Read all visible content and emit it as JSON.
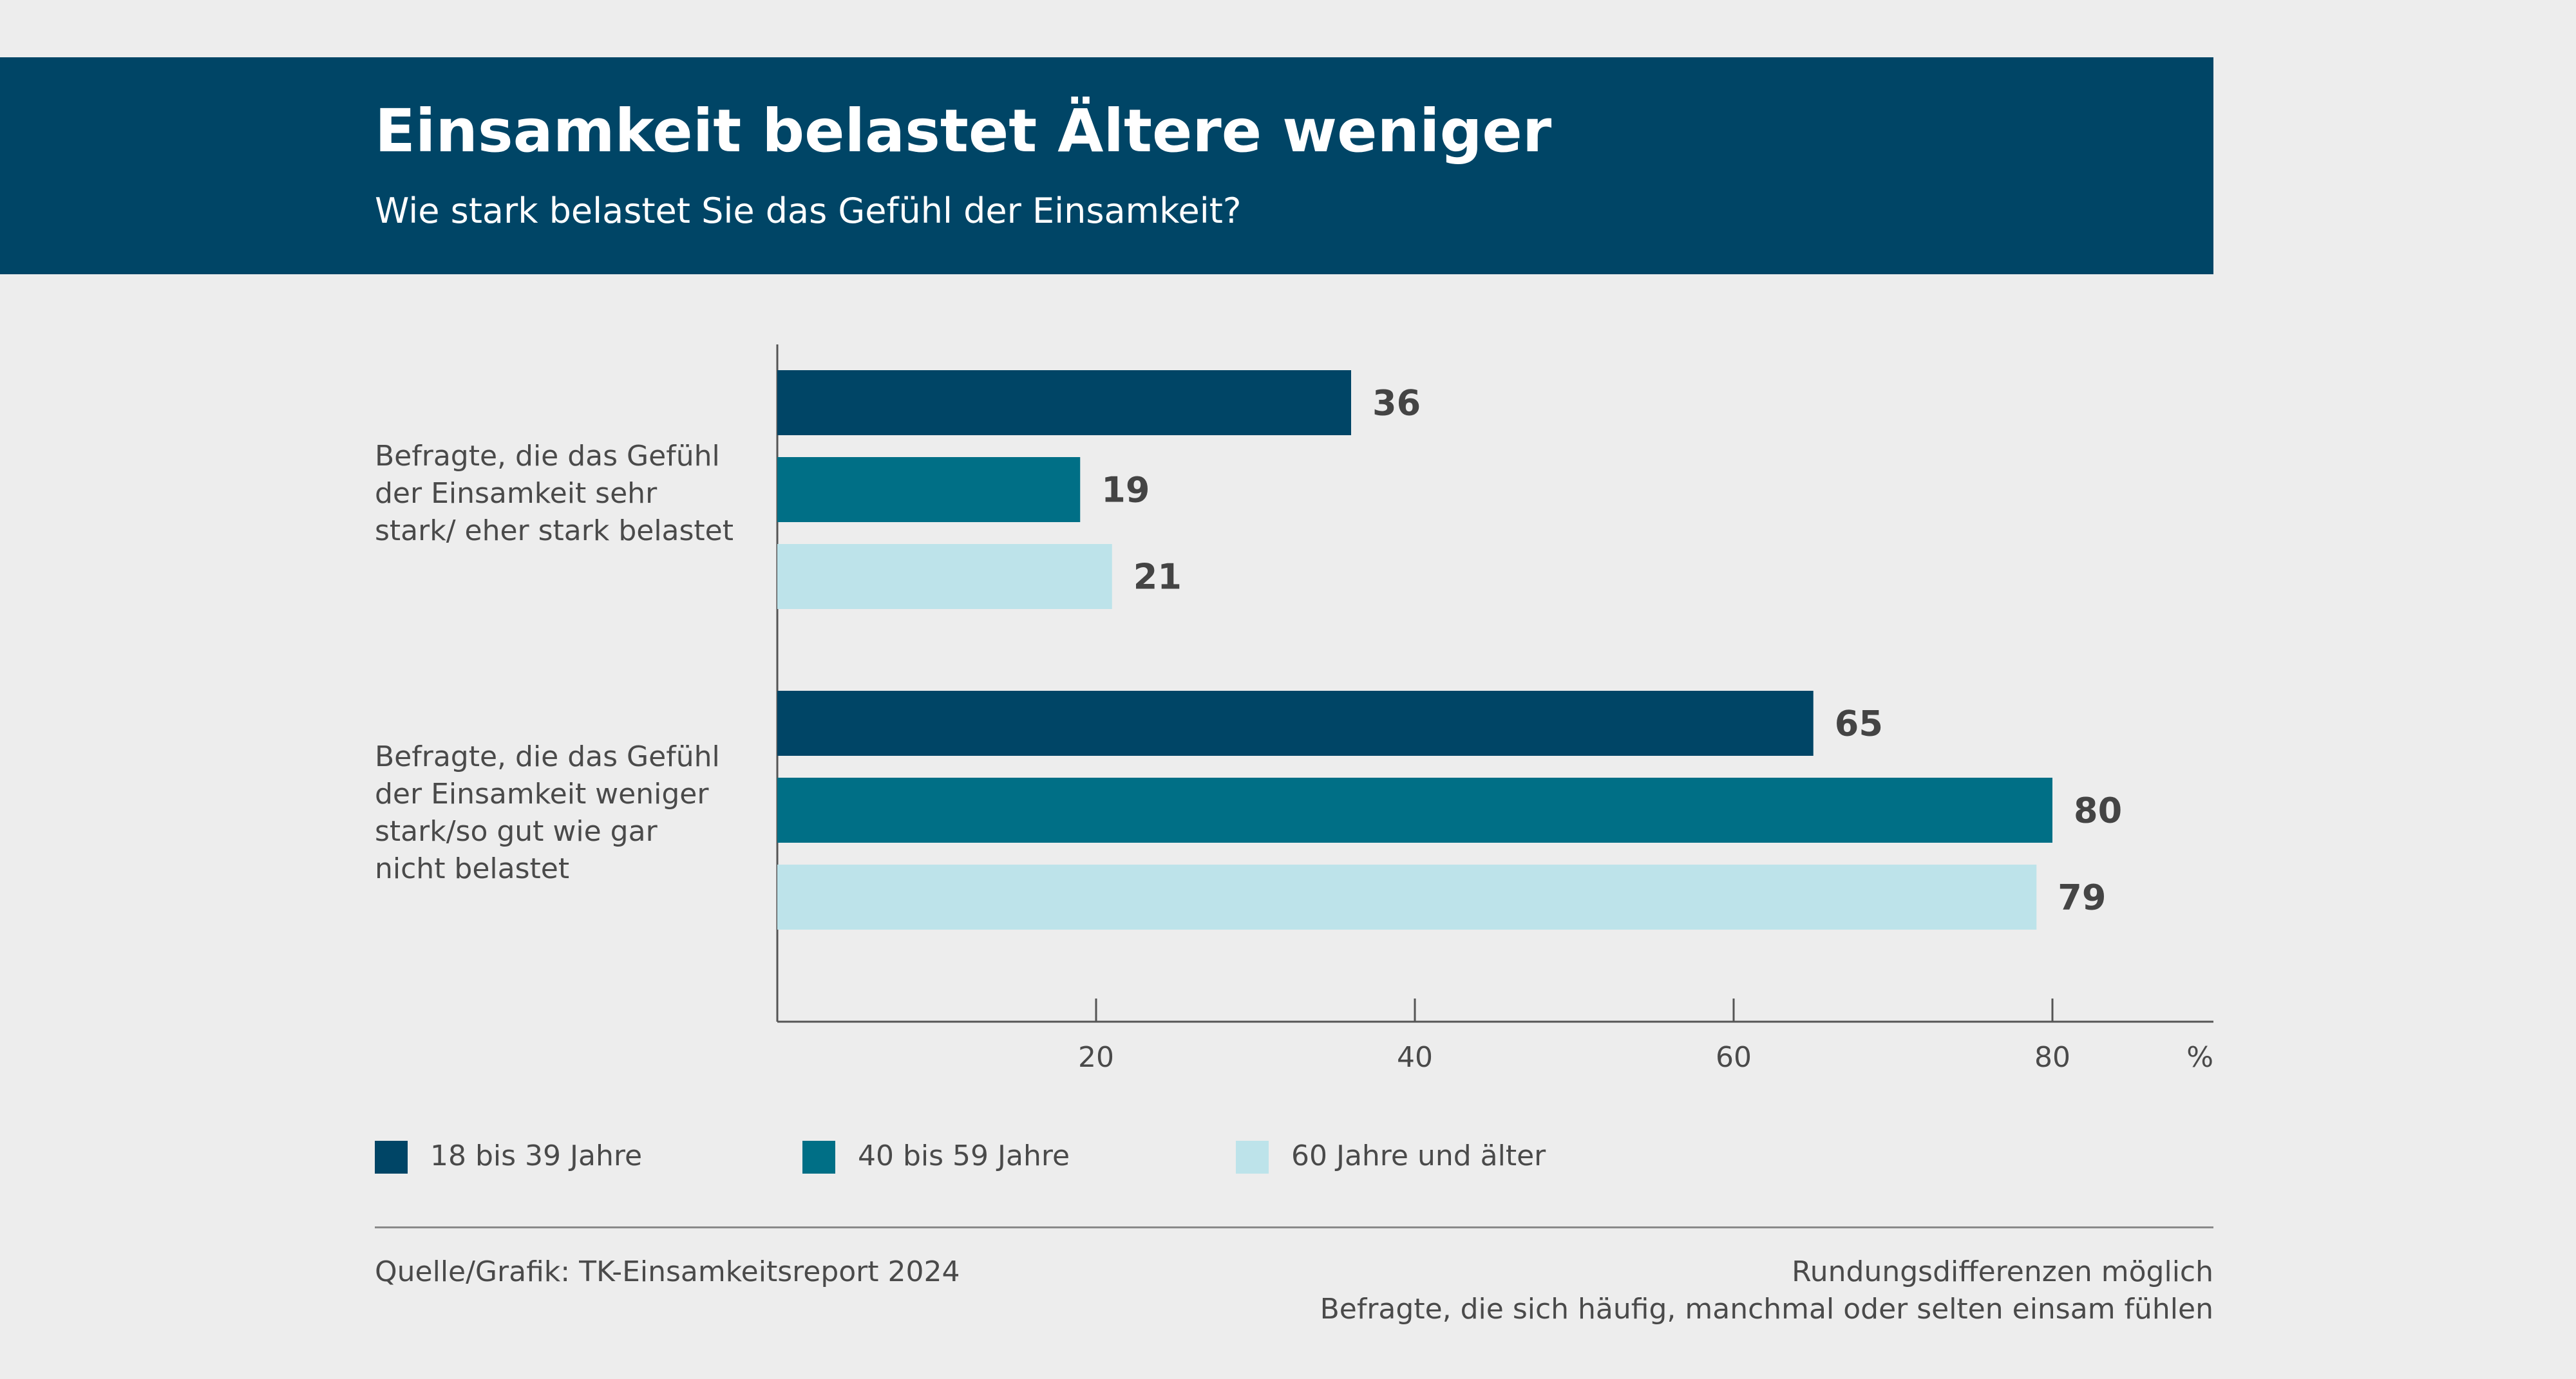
{
  "header": {
    "title": "Einsamkeit belastet Ältere weniger",
    "subtitle": "Wie stark belastet Sie das Gefühl der Einsamkeit?"
  },
  "chart_data": {
    "type": "bar",
    "orientation": "horizontal",
    "categories": [
      "Befragte, die das Gefühl der Einsamkeit sehr stark/ eher stark belastet",
      "Befragte, die das Gefühl der Einsamkeit weniger stark/so gut wie gar nicht belastet"
    ],
    "series": [
      {
        "name": "18 bis 39 Jahre",
        "values": [
          36,
          65
        ],
        "color": "#004566"
      },
      {
        "name": "40 bis 59 Jahre",
        "values": [
          19,
          80
        ],
        "color": "#006f86"
      },
      {
        "name": "60 Jahre und älter",
        "values": [
          21,
          79
        ],
        "color": "#bde3ea"
      }
    ],
    "x_ticks": [
      "20",
      "40",
      "60",
      "80"
    ],
    "x_unit": "%",
    "xlim": [
      0,
      90
    ],
    "grid": false,
    "legend_position": "bottom-left"
  },
  "legend": {
    "items": [
      {
        "label": "18 bis 39 Jahre",
        "color": "#004566"
      },
      {
        "label": "40 bis 59 Jahre",
        "color": "#006f86"
      },
      {
        "label": "60 Jahre und älter",
        "color": "#bde3ea"
      }
    ]
  },
  "footer": {
    "source": "Quelle/Grafik: TK-Einsamkeitsreport 2024",
    "note1": "Rundungsdifferenzen möglich",
    "note2": "Befragte, die sich häufig, manchmal oder selten einsam fühlen"
  }
}
